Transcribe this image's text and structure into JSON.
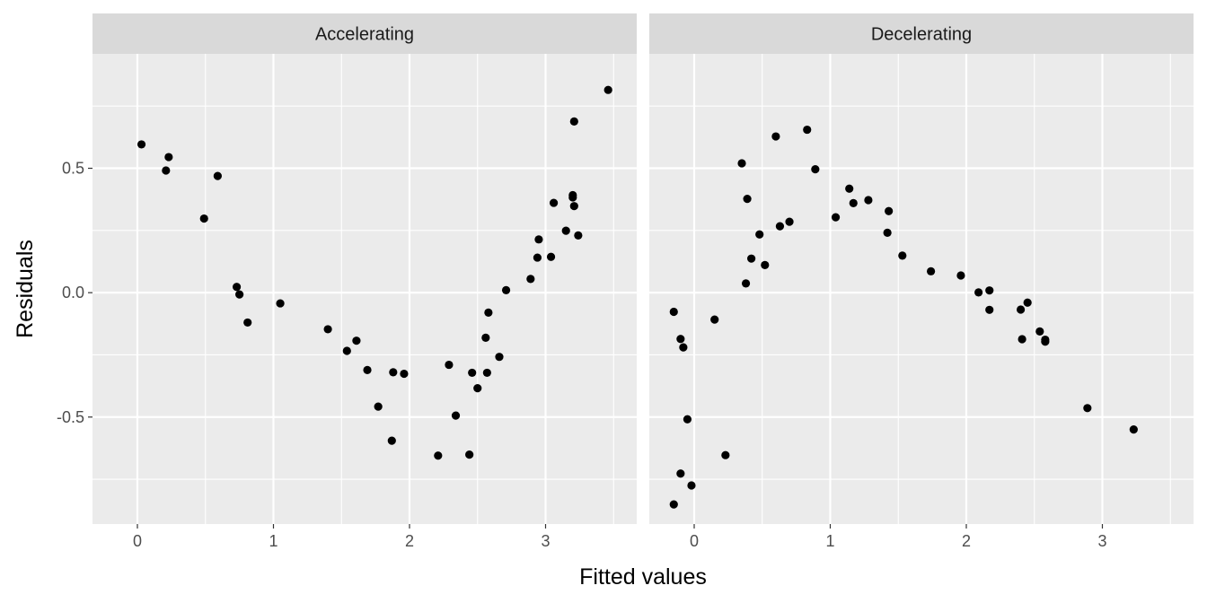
{
  "chart_data": {
    "type": "scatter",
    "xlabel": "Fitted values",
    "ylabel": "Residuals",
    "xlim": [
      -0.33,
      3.67
    ],
    "ylim": [
      -0.93,
      0.96
    ],
    "x_ticks": [
      0,
      1,
      2,
      3
    ],
    "x_tick_labels": [
      "0",
      "1",
      "2",
      "3"
    ],
    "y_ticks": [
      0.5,
      0.0,
      -0.5
    ],
    "y_tick_labels": [
      "0.5",
      "0.0",
      "-0.5"
    ],
    "grid": true,
    "point_color": "#000000",
    "panel_background": "#ebebeb",
    "strip_background": "#d9d9d9",
    "panels": [
      {
        "title": "Accelerating",
        "points": [
          [
            0.03,
            0.596
          ],
          [
            0.21,
            0.491
          ],
          [
            0.23,
            0.545
          ],
          [
            0.49,
            0.298
          ],
          [
            0.59,
            0.469
          ],
          [
            0.73,
            0.023
          ],
          [
            0.75,
            -0.007
          ],
          [
            0.81,
            -0.12
          ],
          [
            1.05,
            -0.043
          ],
          [
            1.4,
            -0.147
          ],
          [
            1.54,
            -0.234
          ],
          [
            1.61,
            -0.193
          ],
          [
            1.69,
            -0.311
          ],
          [
            1.77,
            -0.458
          ],
          [
            1.87,
            -0.595
          ],
          [
            1.88,
            -0.32
          ],
          [
            1.96,
            -0.326
          ],
          [
            2.21,
            -0.655
          ],
          [
            2.29,
            -0.29
          ],
          [
            2.34,
            -0.494
          ],
          [
            2.44,
            -0.651
          ],
          [
            2.46,
            -0.322
          ],
          [
            2.5,
            -0.384
          ],
          [
            2.56,
            -0.181
          ],
          [
            2.57,
            -0.322
          ],
          [
            2.58,
            -0.08
          ],
          [
            2.66,
            -0.258
          ],
          [
            2.71,
            0.01
          ],
          [
            2.89,
            0.055
          ],
          [
            2.94,
            0.141
          ],
          [
            2.95,
            0.214
          ],
          [
            3.04,
            0.144
          ],
          [
            3.06,
            0.361
          ],
          [
            3.15,
            0.249
          ],
          [
            3.2,
            0.383
          ],
          [
            3.2,
            0.392
          ],
          [
            3.21,
            0.348
          ],
          [
            3.21,
            0.688
          ],
          [
            3.24,
            0.23
          ],
          [
            3.46,
            0.815
          ]
        ]
      },
      {
        "title": "Decelerating",
        "points": [
          [
            -0.15,
            -0.077
          ],
          [
            -0.15,
            -0.851
          ],
          [
            -0.1,
            -0.186
          ],
          [
            -0.1,
            -0.727
          ],
          [
            -0.08,
            -0.22
          ],
          [
            -0.05,
            -0.509
          ],
          [
            -0.02,
            -0.775
          ],
          [
            0.15,
            -0.108
          ],
          [
            0.23,
            -0.653
          ],
          [
            0.35,
            0.52
          ],
          [
            0.38,
            0.037
          ],
          [
            0.39,
            0.377
          ],
          [
            0.42,
            0.137
          ],
          [
            0.48,
            0.234
          ],
          [
            0.52,
            0.111
          ],
          [
            0.6,
            0.628
          ],
          [
            0.63,
            0.267
          ],
          [
            0.7,
            0.285
          ],
          [
            0.83,
            0.655
          ],
          [
            0.89,
            0.496
          ],
          [
            1.04,
            0.303
          ],
          [
            1.14,
            0.418
          ],
          [
            1.17,
            0.36
          ],
          [
            1.28,
            0.372
          ],
          [
            1.42,
            0.241
          ],
          [
            1.43,
            0.328
          ],
          [
            1.53,
            0.149
          ],
          [
            1.74,
            0.086
          ],
          [
            1.96,
            0.069
          ],
          [
            2.09,
            0.001
          ],
          [
            2.17,
            0.009
          ],
          [
            2.17,
            -0.069
          ],
          [
            2.4,
            -0.068
          ],
          [
            2.41,
            -0.187
          ],
          [
            2.45,
            -0.04
          ],
          [
            2.54,
            -0.156
          ],
          [
            2.58,
            -0.189
          ],
          [
            2.58,
            -0.197
          ],
          [
            2.89,
            -0.464
          ],
          [
            3.23,
            -0.55
          ]
        ]
      }
    ]
  }
}
